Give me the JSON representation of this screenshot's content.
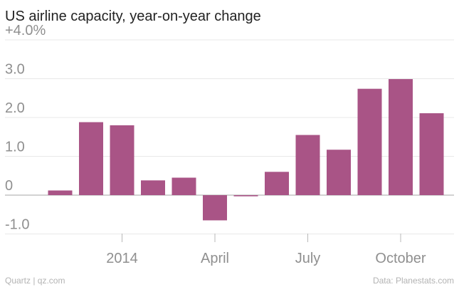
{
  "chart_data": {
    "type": "bar",
    "title": "US airline capacity, year-on-year change",
    "source": "Data: Planestats.com",
    "credit": "Quartz | qz.com",
    "colors": {
      "bar": "#a95486",
      "grid": "#e8e8e8",
      "zero_line": "#b8b8b8",
      "tick_text": "#8f8f8f",
      "title_text": "#222222",
      "footer_text": "#b3b3b3"
    },
    "ylim": [
      -1.0,
      4.0
    ],
    "y_ticks": [
      -1.0,
      0,
      1.0,
      2.0,
      3.0,
      4.0
    ],
    "y_tick_labels": [
      "-1.0",
      "0",
      "1.0",
      "2.0",
      "3.0",
      "+4.0%"
    ],
    "x_tick_labels": [
      {
        "label": "2014",
        "position": 2.5
      },
      {
        "label": "April",
        "position": 5.5
      },
      {
        "label": "July",
        "position": 8.5
      },
      {
        "label": "October",
        "position": 11.5
      }
    ],
    "values": [
      0.12,
      1.88,
      1.8,
      0.38,
      0.45,
      -0.65,
      -0.03,
      0.6,
      1.55,
      1.17,
      2.74,
      2.99,
      2.11
    ],
    "grid": true
  }
}
